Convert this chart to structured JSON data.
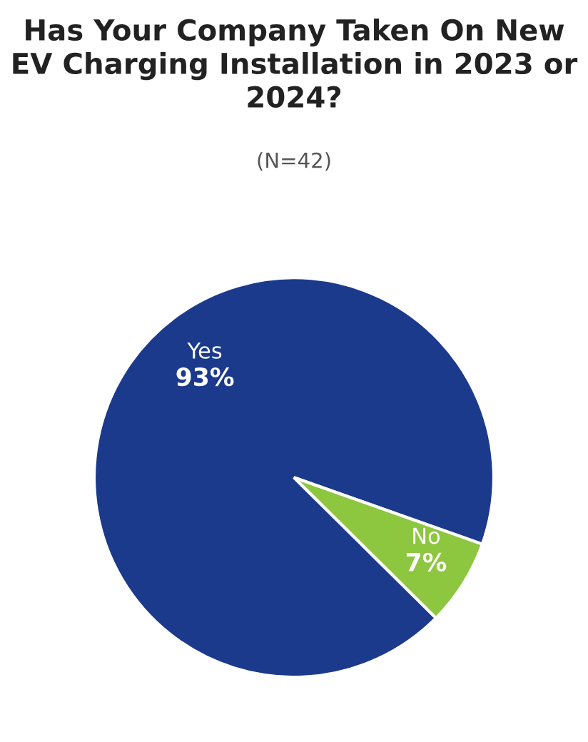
{
  "chart_data": {
    "type": "pie",
    "title": "Has Your Company Taken On New EV Charging Installation in 2023 or 2024?",
    "subtitle": "(N=42)",
    "categories": [
      "Yes",
      "No"
    ],
    "values": [
      93,
      7
    ],
    "colors": [
      "#1b3a8c",
      "#8dc63f"
    ],
    "value_labels": [
      "93%",
      "7%"
    ]
  }
}
